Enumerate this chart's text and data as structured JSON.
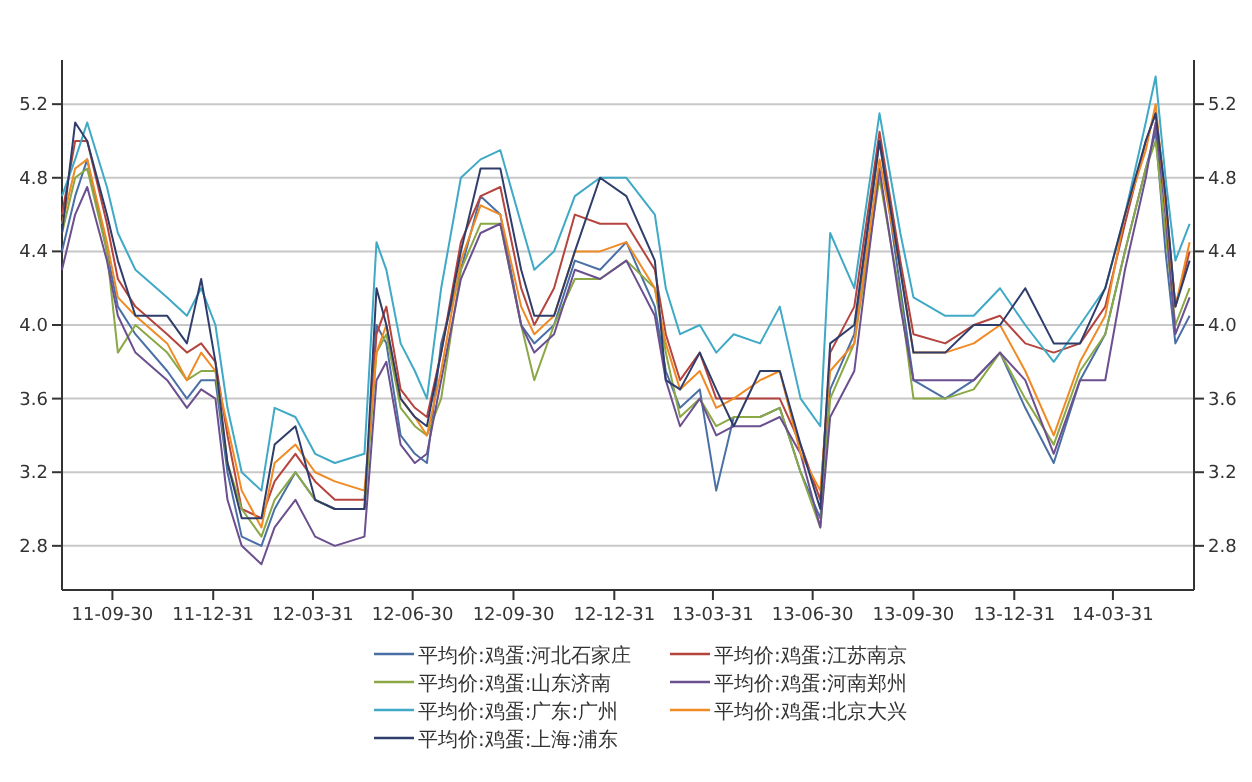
{
  "chart_data": {
    "type": "line",
    "x": [
      "2011-08-15",
      "2011-08-27",
      "2011-09-07",
      "2011-09-25",
      "2011-10-05",
      "2011-10-21",
      "2011-11-19",
      "2011-12-07",
      "2011-12-20",
      "2012-01-02",
      "2012-01-13",
      "2012-01-26",
      "2012-02-13",
      "2012-02-25",
      "2012-03-15",
      "2012-04-02",
      "2012-04-20",
      "2012-05-17",
      "2012-05-28",
      "2012-06-06",
      "2012-06-19",
      "2012-07-02",
      "2012-07-13",
      "2012-07-26",
      "2012-08-13",
      "2012-08-31",
      "2012-09-18",
      "2012-10-07",
      "2012-10-19",
      "2012-11-06",
      "2012-11-25",
      "2012-12-18",
      "2013-01-11",
      "2013-02-06",
      "2013-02-16",
      "2013-03-01",
      "2013-03-19",
      "2013-04-03",
      "2013-04-19",
      "2013-05-13",
      "2013-05-31",
      "2013-06-19",
      "2013-07-07",
      "2013-07-16",
      "2013-08-07",
      "2013-08-30",
      "2013-09-18",
      "2013-09-30",
      "2013-10-29",
      "2013-11-24",
      "2013-12-18",
      "2014-01-10",
      "2014-02-05",
      "2014-03-01",
      "2014-03-24",
      "2014-04-11",
      "2014-04-30",
      "2014-05-09",
      "2014-05-18",
      "2014-05-27",
      "2014-06-09"
    ],
    "series": [
      {
        "name": "平均价:鸡蛋:河北石家庄",
        "color": "#4a6fa5",
        "values": [
          4.4,
          4.7,
          4.9,
          4.4,
          4.1,
          3.95,
          3.75,
          3.6,
          3.7,
          3.7,
          3.2,
          2.85,
          2.8,
          3.0,
          3.2,
          3.05,
          3.0,
          3.0,
          4.0,
          3.9,
          3.4,
          3.3,
          3.25,
          3.9,
          4.3,
          4.7,
          4.6,
          4.0,
          3.9,
          4.0,
          4.35,
          4.3,
          4.45,
          4.1,
          3.75,
          3.55,
          3.65,
          3.1,
          3.5,
          3.5,
          3.55,
          3.2,
          2.95,
          3.65,
          3.95,
          5.0,
          4.2,
          3.7,
          3.6,
          3.7,
          3.85,
          3.55,
          3.25,
          3.7,
          3.95,
          4.4,
          4.85,
          5.05,
          4.4,
          3.9,
          4.05
        ]
      },
      {
        "name": "平均价:鸡蛋:江苏南京",
        "color": "#b5443f",
        "values": [
          4.6,
          5.0,
          5.0,
          4.55,
          4.25,
          4.1,
          3.95,
          3.85,
          3.9,
          3.8,
          3.4,
          3.0,
          2.95,
          3.15,
          3.3,
          3.15,
          3.05,
          3.05,
          3.95,
          4.1,
          3.65,
          3.55,
          3.5,
          3.85,
          4.45,
          4.7,
          4.75,
          4.2,
          4.0,
          4.2,
          4.6,
          4.55,
          4.55,
          4.3,
          3.95,
          3.7,
          3.85,
          3.6,
          3.6,
          3.6,
          3.6,
          3.35,
          3.05,
          3.85,
          4.1,
          5.05,
          4.35,
          3.95,
          3.9,
          4.0,
          4.05,
          3.9,
          3.85,
          3.9,
          4.1,
          4.55,
          5.0,
          5.15,
          4.7,
          4.1,
          4.4
        ]
      },
      {
        "name": "平均价:鸡蛋:山东济南",
        "color": "#8aa845",
        "values": [
          4.5,
          4.8,
          4.85,
          4.4,
          3.85,
          4.0,
          3.85,
          3.7,
          3.75,
          3.75,
          3.25,
          3.0,
          2.85,
          3.05,
          3.2,
          3.05,
          3.0,
          3.0,
          3.85,
          3.95,
          3.55,
          3.45,
          3.4,
          3.6,
          4.3,
          4.55,
          4.55,
          4.0,
          3.7,
          4.0,
          4.25,
          4.25,
          4.35,
          4.2,
          3.85,
          3.5,
          3.6,
          3.45,
          3.5,
          3.5,
          3.55,
          3.2,
          2.9,
          3.6,
          3.9,
          4.8,
          4.15,
          3.6,
          3.6,
          3.65,
          3.85,
          3.6,
          3.35,
          3.75,
          3.95,
          4.4,
          4.85,
          5.0,
          4.5,
          4.0,
          4.2
        ]
      },
      {
        "name": "平均价:鸡蛋:河南郑州",
        "color": "#6b4f8f",
        "values": [
          4.3,
          4.6,
          4.75,
          4.35,
          4.05,
          3.85,
          3.7,
          3.55,
          3.65,
          3.6,
          3.05,
          2.8,
          2.7,
          2.9,
          3.05,
          2.85,
          2.8,
          2.85,
          3.7,
          3.8,
          3.35,
          3.25,
          3.3,
          3.7,
          4.25,
          4.5,
          4.55,
          4.0,
          3.85,
          3.95,
          4.3,
          4.25,
          4.35,
          4.05,
          3.7,
          3.45,
          3.6,
          3.4,
          3.45,
          3.45,
          3.5,
          3.3,
          2.9,
          3.5,
          3.75,
          4.85,
          4.1,
          3.7,
          3.7,
          3.7,
          3.85,
          3.7,
          3.3,
          3.7,
          3.7,
          4.3,
          4.8,
          5.1,
          4.6,
          3.95,
          4.15
        ]
      },
      {
        "name": "平均价:鸡蛋:广东:广州",
        "color": "#3fa9c6",
        "values": [
          4.7,
          4.9,
          5.1,
          4.75,
          4.5,
          4.3,
          4.15,
          4.05,
          4.2,
          4.0,
          3.55,
          3.2,
          3.1,
          3.55,
          3.5,
          3.3,
          3.25,
          3.3,
          4.45,
          4.3,
          3.9,
          3.75,
          3.6,
          4.2,
          4.8,
          4.9,
          4.95,
          4.55,
          4.3,
          4.4,
          4.7,
          4.8,
          4.8,
          4.6,
          4.2,
          3.95,
          4.0,
          3.85,
          3.95,
          3.9,
          4.1,
          3.6,
          3.45,
          4.5,
          4.2,
          5.15,
          4.5,
          4.15,
          4.05,
          4.05,
          4.2,
          4.0,
          3.8,
          4.0,
          4.2,
          4.6,
          5.1,
          5.35,
          4.8,
          4.35,
          4.55
        ]
      },
      {
        "name": "平均价:鸡蛋:北京大兴",
        "color": "#f08a24",
        "values": [
          4.55,
          4.85,
          4.9,
          4.45,
          4.15,
          4.05,
          3.9,
          3.7,
          3.85,
          3.75,
          3.45,
          3.1,
          2.9,
          3.25,
          3.35,
          3.2,
          3.15,
          3.1,
          3.85,
          4.0,
          3.6,
          3.5,
          3.4,
          3.75,
          4.35,
          4.65,
          4.6,
          4.1,
          3.95,
          4.05,
          4.4,
          4.4,
          4.45,
          4.2,
          3.9,
          3.65,
          3.75,
          3.55,
          3.6,
          3.7,
          3.75,
          3.3,
          3.1,
          3.75,
          3.9,
          4.9,
          4.3,
          3.85,
          3.85,
          3.9,
          4.0,
          3.75,
          3.4,
          3.8,
          4.05,
          4.6,
          4.95,
          5.2,
          4.65,
          4.1,
          4.45
        ]
      },
      {
        "name": "平均价:鸡蛋:上海:浦东",
        "color": "#2f3d6b",
        "values": [
          4.5,
          5.1,
          5.0,
          4.6,
          4.35,
          4.05,
          4.05,
          3.9,
          4.25,
          3.8,
          3.25,
          2.95,
          2.95,
          3.35,
          3.45,
          3.05,
          3.0,
          3.0,
          4.2,
          4.0,
          3.6,
          3.5,
          3.45,
          3.85,
          4.4,
          4.85,
          4.85,
          4.3,
          4.05,
          4.05,
          4.4,
          4.8,
          4.7,
          4.35,
          3.7,
          3.65,
          3.85,
          3.65,
          3.45,
          3.75,
          3.75,
          3.35,
          3.0,
          3.9,
          4.0,
          5.0,
          4.3,
          3.85,
          3.85,
          4.0,
          4.0,
          4.2,
          3.9,
          3.9,
          4.2,
          4.6,
          5.0,
          5.15,
          4.7,
          4.1,
          4.35
        ]
      }
    ],
    "xlim": [
      "2011-08-15",
      "2014-06-13"
    ],
    "xticks": [
      {
        "value": "2011-09-30",
        "label": "11-09-30"
      },
      {
        "value": "2011-12-31",
        "label": "11-12-31"
      },
      {
        "value": "2012-03-31",
        "label": "12-03-31"
      },
      {
        "value": "2012-06-30",
        "label": "12-06-30"
      },
      {
        "value": "2012-09-30",
        "label": "12-09-30"
      },
      {
        "value": "2012-12-31",
        "label": "12-12-31"
      },
      {
        "value": "2013-03-31",
        "label": "13-03-31"
      },
      {
        "value": "2013-06-30",
        "label": "13-06-30"
      },
      {
        "value": "2013-09-30",
        "label": "13-09-30"
      },
      {
        "value": "2013-12-31",
        "label": "13-12-31"
      },
      {
        "value": "2014-03-31",
        "label": "14-03-31"
      }
    ],
    "ylim": [
      2.56,
      5.44
    ],
    "yticks": [
      {
        "value": 2.8,
        "label": "2.8"
      },
      {
        "value": 3.2,
        "label": "3.2"
      },
      {
        "value": 3.6,
        "label": "3.6"
      },
      {
        "value": 4.0,
        "label": "4.0"
      },
      {
        "value": 4.4,
        "label": "4.4"
      },
      {
        "value": 4.8,
        "label": "4.8"
      },
      {
        "value": 5.2,
        "label": "5.2"
      }
    ],
    "y2lim": [
      2.56,
      5.44
    ],
    "y2ticks": [
      {
        "value": 2.8,
        "label": "2.8"
      },
      {
        "value": 3.2,
        "label": "3.2"
      },
      {
        "value": 3.6,
        "label": "3.6"
      },
      {
        "value": 4.0,
        "label": "4.0"
      },
      {
        "value": 4.4,
        "label": "4.4"
      },
      {
        "value": 4.8,
        "label": "4.8"
      },
      {
        "value": 5.2,
        "label": "5.2"
      }
    ],
    "grid": "y",
    "legend": "bottom",
    "line_style": "solid",
    "marker": "none"
  }
}
